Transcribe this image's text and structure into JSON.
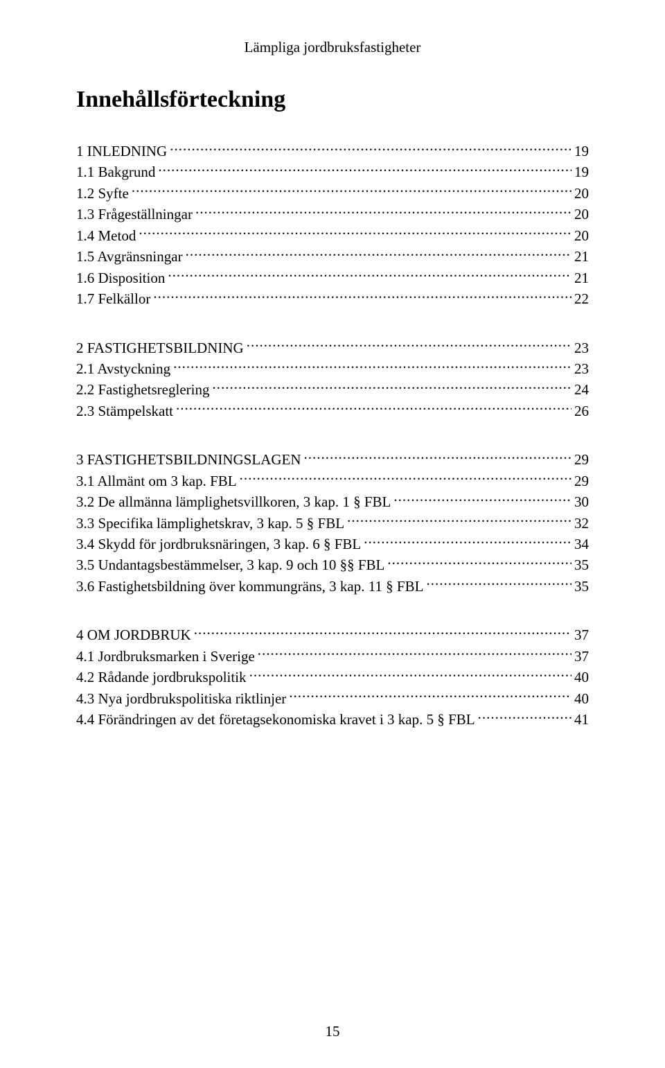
{
  "running_head": "Lämpliga jordbruksfastigheter",
  "toc_title": "Innehållsförteckning",
  "page_number": "15",
  "groups": [
    {
      "entries": [
        {
          "label": "1 INLEDNING",
          "page": "19"
        },
        {
          "label": "1.1 Bakgrund",
          "page": "19"
        },
        {
          "label": "1.2 Syfte",
          "page": "20"
        },
        {
          "label": "1.3 Frågeställningar",
          "page": "20"
        },
        {
          "label": "1.4 Metod",
          "page": "20"
        },
        {
          "label": "1.5 Avgränsningar",
          "page": "21"
        },
        {
          "label": "1.6 Disposition",
          "page": "21"
        },
        {
          "label": "1.7 Felkällor",
          "page": "22"
        }
      ]
    },
    {
      "entries": [
        {
          "label": "2 FASTIGHETSBILDNING",
          "page": "23"
        },
        {
          "label": "2.1 Avstyckning",
          "page": "23"
        },
        {
          "label": "2.2 Fastighetsreglering",
          "page": "24"
        },
        {
          "label": "2.3 Stämpelskatt",
          "page": "26"
        }
      ]
    },
    {
      "entries": [
        {
          "label": "3 FASTIGHETSBILDNINGSLAGEN",
          "page": "29"
        },
        {
          "label": "3.1 Allmänt om 3 kap. FBL",
          "page": "29"
        },
        {
          "label": "3.2 De allmänna lämplighetsvillkoren, 3 kap. 1 § FBL",
          "page": "30"
        },
        {
          "label": "3.3 Specifika lämplighetskrav, 3 kap. 5 § FBL",
          "page": "32"
        },
        {
          "label": "3.4 Skydd för jordbruksnäringen, 3 kap. 6 § FBL",
          "page": "34"
        },
        {
          "label": "3.5 Undantagsbestämmelser, 3 kap. 9 och 10 §§ FBL",
          "page": "35"
        },
        {
          "label": "3.6 Fastighetsbildning över kommungräns, 3 kap. 11 § FBL",
          "page": "35"
        }
      ]
    },
    {
      "entries": [
        {
          "label": "4 OM JORDBRUK",
          "page": "37"
        },
        {
          "label": "4.1 Jordbruksmarken i Sverige",
          "page": "37"
        },
        {
          "label": "4.2 Rådande jordbrukspolitik",
          "page": "40"
        },
        {
          "label": "4.3 Nya jordbrukspolitiska riktlinjer",
          "page": "40"
        },
        {
          "label": "4.4 Förändringen av det företagsekonomiska kravet i 3 kap. 5 § FBL",
          "page": "41"
        }
      ]
    }
  ]
}
